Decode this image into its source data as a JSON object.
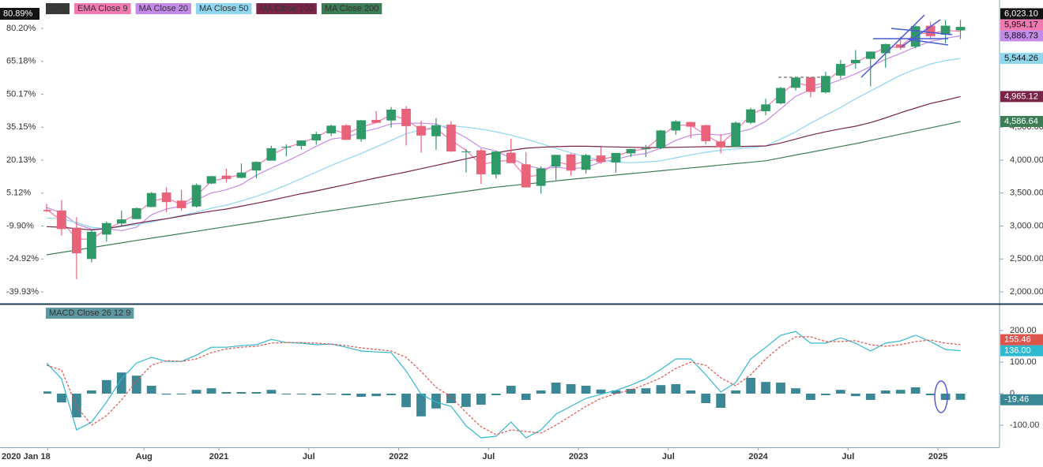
{
  "chart_data": [
    {
      "type": "candlestick",
      "name": "SPX",
      "color": "#3a3a3a",
      "up_color": "#2f9a68",
      "down_color": "#e8627a",
      "x": [
        "2020-01",
        "2020-02",
        "2020-03",
        "2020-04",
        "2020-05",
        "2020-06",
        "2020-07",
        "2020-08",
        "2020-09",
        "2020-10",
        "2020-11",
        "2020-12",
        "2021-01",
        "2021-02",
        "2021-03",
        "2021-04",
        "2021-05",
        "2021-06",
        "2021-07",
        "2021-08",
        "2021-09",
        "2021-10",
        "2021-11",
        "2021-12",
        "2022-01",
        "2022-02",
        "2022-03",
        "2022-04",
        "2022-05",
        "2022-06",
        "2022-07",
        "2022-08",
        "2022-09",
        "2022-10",
        "2022-11",
        "2022-12",
        "2023-01",
        "2023-02",
        "2023-03",
        "2023-04",
        "2023-05",
        "2023-06",
        "2023-07",
        "2023-08",
        "2023-09",
        "2023-10",
        "2023-11",
        "2023-12",
        "2024-01",
        "2024-02",
        "2024-03",
        "2024-04",
        "2024-05",
        "2024-06",
        "2024-07",
        "2024-08",
        "2024-09",
        "2024-10",
        "2024-11",
        "2024-12",
        "2025-01",
        "2025-02"
      ],
      "open": [
        3244,
        3235,
        2974,
        2499,
        2870,
        3038,
        3105,
        3289,
        3508,
        3385,
        3296,
        3645,
        3764,
        3731,
        3842,
        3992,
        4191,
        4216,
        4300,
        4406,
        4528,
        4317,
        4610,
        4602,
        4778,
        4519,
        4363,
        4540,
        4130,
        4149,
        3781,
        4113,
        3936,
        3609,
        3901,
        4087,
        3853,
        4070,
        3964,
        4102,
        4166,
        4181,
        4450,
        4578,
        4530,
        4284,
        4202,
        4568,
        4743,
        4862,
        5098,
        5258,
        5029,
        5283,
        5471,
        5537,
        5623,
        5757,
        5723,
        6040,
        5904,
        5969
      ],
      "high": [
        3337,
        3393,
        3136,
        2954,
        3068,
        3233,
        3279,
        3515,
        3588,
        3549,
        3646,
        3760,
        3870,
        3950,
        3983,
        4218,
        4238,
        4302,
        4430,
        4538,
        4546,
        4608,
        4744,
        4808,
        4819,
        4596,
        4637,
        4593,
        4169,
        4177,
        4140,
        4325,
        4119,
        3905,
        4080,
        4101,
        4095,
        4195,
        4110,
        4170,
        4231,
        4459,
        4607,
        4584,
        4542,
        4393,
        4587,
        4793,
        4932,
        5112,
        5265,
        5264,
        5342,
        5523,
        5670,
        5651,
        5768,
        5878,
        6044,
        6100,
        6128,
        6128
      ],
      "low": [
        3214,
        2855,
        2192,
        2447,
        2766,
        2999,
        3101,
        3284,
        3209,
        3234,
        3279,
        3633,
        3662,
        3725,
        3723,
        3992,
        4056,
        4164,
        4233,
        4367,
        4306,
        4279,
        4561,
        4495,
        4223,
        4115,
        4157,
        4125,
        3811,
        3637,
        3721,
        3955,
        3584,
        3492,
        3698,
        3765,
        3795,
        3944,
        3809,
        4049,
        4048,
        4166,
        4385,
        4335,
        4239,
        4104,
        4197,
        4547,
        4682,
        4845,
        5057,
        4954,
        5011,
        5235,
        5390,
        5120,
        5403,
        5675,
        5697,
        5833,
        5773,
        5837
      ],
      "close": [
        3225,
        2954,
        2585,
        2912,
        3044,
        3100,
        3271,
        3500,
        3363,
        3270,
        3622,
        3756,
        3714,
        3811,
        3973,
        4181,
        4204,
        4298,
        4395,
        4523,
        4308,
        4605,
        4567,
        4766,
        4516,
        4374,
        4530,
        4132,
        4132,
        3785,
        4130,
        3955,
        3586,
        3872,
        4080,
        3840,
        4077,
        3970,
        4109,
        4169,
        4180,
        4450,
        4589,
        4508,
        4288,
        4194,
        4568,
        4770,
        4846,
        5096,
        5254,
        5036,
        5278,
        5460,
        5522,
        5648,
        5762,
        5705,
        6032,
        5882,
        6041,
        6023.1
      ],
      "last_label": "6,023.10",
      "series": [
        {
          "name": "EMA Close 9",
          "color": "#f27ab0",
          "last_label": "5,954.17",
          "values": [
            3250,
            3080,
            2800,
            2800,
            2950,
            3060,
            3180,
            3380,
            3420,
            3330,
            3460,
            3680,
            3730,
            3780,
            3900,
            4080,
            4190,
            4260,
            4350,
            4470,
            4400,
            4500,
            4570,
            4690,
            4610,
            4460,
            4480,
            4300,
            4150,
            3930,
            3980,
            4000,
            3740,
            3780,
            3980,
            3920,
            3990,
            4010,
            4060,
            4140,
            4170,
            4360,
            4530,
            4530,
            4380,
            4250,
            4440,
            4690,
            4800,
            5000,
            5180,
            5120,
            5180,
            5380,
            5480,
            5600,
            5710,
            5720,
            5930,
            5920,
            5970,
            5954.17
          ]
        },
        {
          "name": "MA Close 20",
          "color": "#c48ae8",
          "last_label": "5,886.73",
          "values": [
            3280,
            3200,
            3030,
            2950,
            2960,
            2930,
            2980,
            3170,
            3260,
            3300,
            3400,
            3500,
            3550,
            3630,
            3770,
            3880,
            3980,
            4090,
            4210,
            4320,
            4350,
            4420,
            4480,
            4550,
            4560,
            4560,
            4550,
            4460,
            4340,
            4190,
            4140,
            4030,
            3920,
            3870,
            3890,
            3870,
            3890,
            3970,
            4010,
            4070,
            4100,
            4180,
            4300,
            4380,
            4400,
            4380,
            4420,
            4470,
            4590,
            4780,
            4970,
            5070,
            5140,
            5220,
            5310,
            5420,
            5530,
            5620,
            5720,
            5800,
            5850,
            5886.73
          ]
        },
        {
          "name": "MA Close 50",
          "color": "#8fd6ee",
          "last_label": "5,544.26",
          "values": [
            3120,
            3110,
            3050,
            2980,
            2960,
            2990,
            3020,
            3060,
            3110,
            3160,
            3210,
            3270,
            3317,
            3380,
            3450,
            3530,
            3620,
            3720,
            3820,
            3920,
            4010,
            4100,
            4200,
            4300,
            4400,
            4460,
            4510,
            4520,
            4500,
            4470,
            4430,
            4380,
            4320,
            4250,
            4180,
            4110,
            4050,
            4000,
            3970,
            3960,
            3970,
            3990,
            4036,
            4080,
            4120,
            4150,
            4170,
            4190,
            4215,
            4320,
            4430,
            4560,
            4680,
            4800,
            4930,
            5050,
            5170,
            5290,
            5380,
            5460,
            5510,
            5544.26
          ]
        },
        {
          "name": "MA Close 100",
          "color": "#7a2448",
          "last_label": "4,965.12",
          "values": [
            2990,
            2980,
            2960,
            2940,
            2960,
            3000,
            3040,
            3078,
            3110,
            3150,
            3190,
            3225,
            3257,
            3300,
            3345,
            3390,
            3440,
            3490,
            3533,
            3580,
            3630,
            3680,
            3730,
            3775,
            3820,
            3870,
            3920,
            3970,
            4020,
            4070,
            4110,
            4150,
            4180,
            4195,
            4205,
            4210,
            4210,
            4205,
            4200,
            4195,
            4190,
            4190,
            4195,
            4200,
            4205,
            4205,
            4205,
            4210,
            4215,
            4260,
            4320,
            4380,
            4430,
            4475,
            4515,
            4570,
            4640,
            4720,
            4790,
            4860,
            4910,
            4965.12
          ]
        },
        {
          "name": "MA Close 200",
          "color": "#3c7d55",
          "last_label": "4,586.64",
          "values": [
            2563,
            2599,
            2635,
            2671,
            2707,
            2743,
            2780,
            2815,
            2850,
            2885,
            2920,
            2955,
            2990,
            3025,
            3060,
            3095,
            3130,
            3165,
            3200,
            3233,
            3267,
            3300,
            3333,
            3367,
            3400,
            3432,
            3463,
            3495,
            3527,
            3558,
            3590,
            3613,
            3637,
            3660,
            3683,
            3707,
            3730,
            3752,
            3773,
            3795,
            3817,
            3838,
            3860,
            3882,
            3903,
            3925,
            3947,
            3968,
            3990,
            4033,
            4077,
            4120,
            4163,
            4207,
            4250,
            4298,
            4346,
            4394,
            4442,
            4490,
            4538,
            4586.64
          ]
        }
      ],
      "ylim": [
        1820,
        6431
      ],
      "yticks": [
        {
          "value": 2000,
          "label": "2,000.00"
        },
        {
          "value": 2500,
          "label": "2,500.00"
        },
        {
          "value": 3000,
          "label": "3,000.00"
        },
        {
          "value": 3500,
          "label": "3,500.00"
        },
        {
          "value": 4000,
          "label": "4,000.00"
        },
        {
          "value": 4500,
          "label": "4,500.00"
        }
      ],
      "y2lim": [
        -45.33,
        93.18
      ],
      "y2ticks": [
        {
          "value": 80.2,
          "label": "80.20%"
        },
        {
          "value": 65.18,
          "label": "65.18%"
        },
        {
          "value": 50.17,
          "label": "50.17%"
        },
        {
          "value": 35.15,
          "label": "35.15%"
        },
        {
          "value": 20.13,
          "label": "20.13%"
        },
        {
          "value": 5.12,
          "label": "5.12%"
        },
        {
          "value": -9.9,
          "label": "-9.90%"
        },
        {
          "value": -24.92,
          "label": "-24.92%"
        },
        {
          "value": -39.93,
          "label": "-39.93%"
        }
      ],
      "y2_current": {
        "value": 80.89,
        "label": "80.89%"
      },
      "xticks": [
        {
          "value": "2020-01-18",
          "label": "2020 Jan 18"
        },
        {
          "value": "2020-08",
          "label": "Aug"
        },
        {
          "value": "2021-01",
          "label": "2021"
        },
        {
          "value": "2021-07",
          "label": "Jul"
        },
        {
          "value": "2022-01",
          "label": "2022"
        },
        {
          "value": "2022-07",
          "label": "Jul"
        },
        {
          "value": "2023-01",
          "label": "2023"
        },
        {
          "value": "2023-07",
          "label": "Jul"
        },
        {
          "value": "2024-01",
          "label": "2024"
        },
        {
          "value": "2024-07",
          "label": "Jul"
        },
        {
          "value": "2025-01",
          "label": "2025"
        }
      ]
    },
    {
      "type": "macd",
      "name": "MACD Close 26 12 9",
      "color": "#5d979f",
      "x": [
        "2020-01",
        "2020-02",
        "2020-03",
        "2020-04",
        "2020-05",
        "2020-06",
        "2020-07",
        "2020-08",
        "2020-09",
        "2020-10",
        "2020-11",
        "2020-12",
        "2021-01",
        "2021-02",
        "2021-03",
        "2021-04",
        "2021-05",
        "2021-06",
        "2021-07",
        "2021-08",
        "2021-09",
        "2021-10",
        "2021-11",
        "2021-12",
        "2022-01",
        "2022-02",
        "2022-03",
        "2022-04",
        "2022-05",
        "2022-06",
        "2022-07",
        "2022-08",
        "2022-09",
        "2022-10",
        "2022-11",
        "2022-12",
        "2023-01",
        "2023-02",
        "2023-03",
        "2023-04",
        "2023-05",
        "2023-06",
        "2023-07",
        "2023-08",
        "2023-09",
        "2023-10",
        "2023-11",
        "2023-12",
        "2024-01",
        "2024-02",
        "2024-03",
        "2024-04",
        "2024-05",
        "2024-06",
        "2024-07",
        "2024-08",
        "2024-09",
        "2024-10",
        "2024-11",
        "2024-12",
        "2025-01",
        "2025-02"
      ],
      "histogram": {
        "color": "#3c8796",
        "last_label": "-19.46",
        "values": [
          7,
          -28,
          -75,
          10,
          43,
          67,
          57,
          25,
          -3,
          0,
          12,
          17,
          5,
          5,
          5,
          12,
          0,
          -2,
          -5,
          0,
          -5,
          -10,
          -8,
          -5,
          -43,
          -72,
          -47,
          -30,
          -42,
          -35,
          -5,
          25,
          -20,
          10,
          35,
          30,
          25,
          13,
          10,
          15,
          17,
          27,
          30,
          10,
          -30,
          -45,
          10,
          50,
          37,
          35,
          17,
          -20,
          -5,
          12,
          -8,
          -20,
          10,
          12,
          20,
          -5,
          -20,
          -19.46
        ]
      },
      "series": [
        {
          "color": "#2fb9d0",
          "last_label": "136.00",
          "values": [
            97,
            47,
            -115,
            -90,
            -27,
            47,
            97,
            115,
            102,
            102,
            122,
            147,
            147,
            152,
            155,
            172,
            162,
            160,
            155,
            157,
            147,
            135,
            132,
            130,
            72,
            -2,
            -27,
            -40,
            -102,
            -140,
            -135,
            -90,
            -140,
            -115,
            -65,
            -40,
            -15,
            -2,
            10,
            27,
            47,
            77,
            110,
            110,
            60,
            5,
            35,
            110,
            147,
            185,
            197,
            160,
            160,
            177,
            160,
            135,
            160,
            167,
            185,
            165,
            140,
            136
          ]
        },
        {
          "color": "#e0544e",
          "dashed": true,
          "last_label": "155.46",
          "values": [
            90,
            75,
            -40,
            -100,
            -70,
            -20,
            40,
            90,
            105,
            102,
            110,
            130,
            142,
            147,
            150,
            160,
            162,
            162,
            160,
            157,
            152,
            145,
            140,
            135,
            115,
            70,
            20,
            -10,
            -60,
            -105,
            -130,
            -115,
            -120,
            -125,
            -100,
            -70,
            -40,
            -15,
            0,
            12,
            30,
            50,
            80,
            100,
            90,
            50,
            25,
            60,
            110,
            150,
            180,
            180,
            165,
            165,
            168,
            155,
            150,
            155,
            165,
            170,
            160,
            155.46
          ]
        }
      ],
      "ylim": [
        -170,
        280
      ],
      "yticks": [
        {
          "value": 200,
          "label": "200.00"
        },
        {
          "value": 100,
          "label": "100.00"
        },
        0,
        {
          "value": -100,
          "label": "-100.00"
        }
      ]
    }
  ]
}
